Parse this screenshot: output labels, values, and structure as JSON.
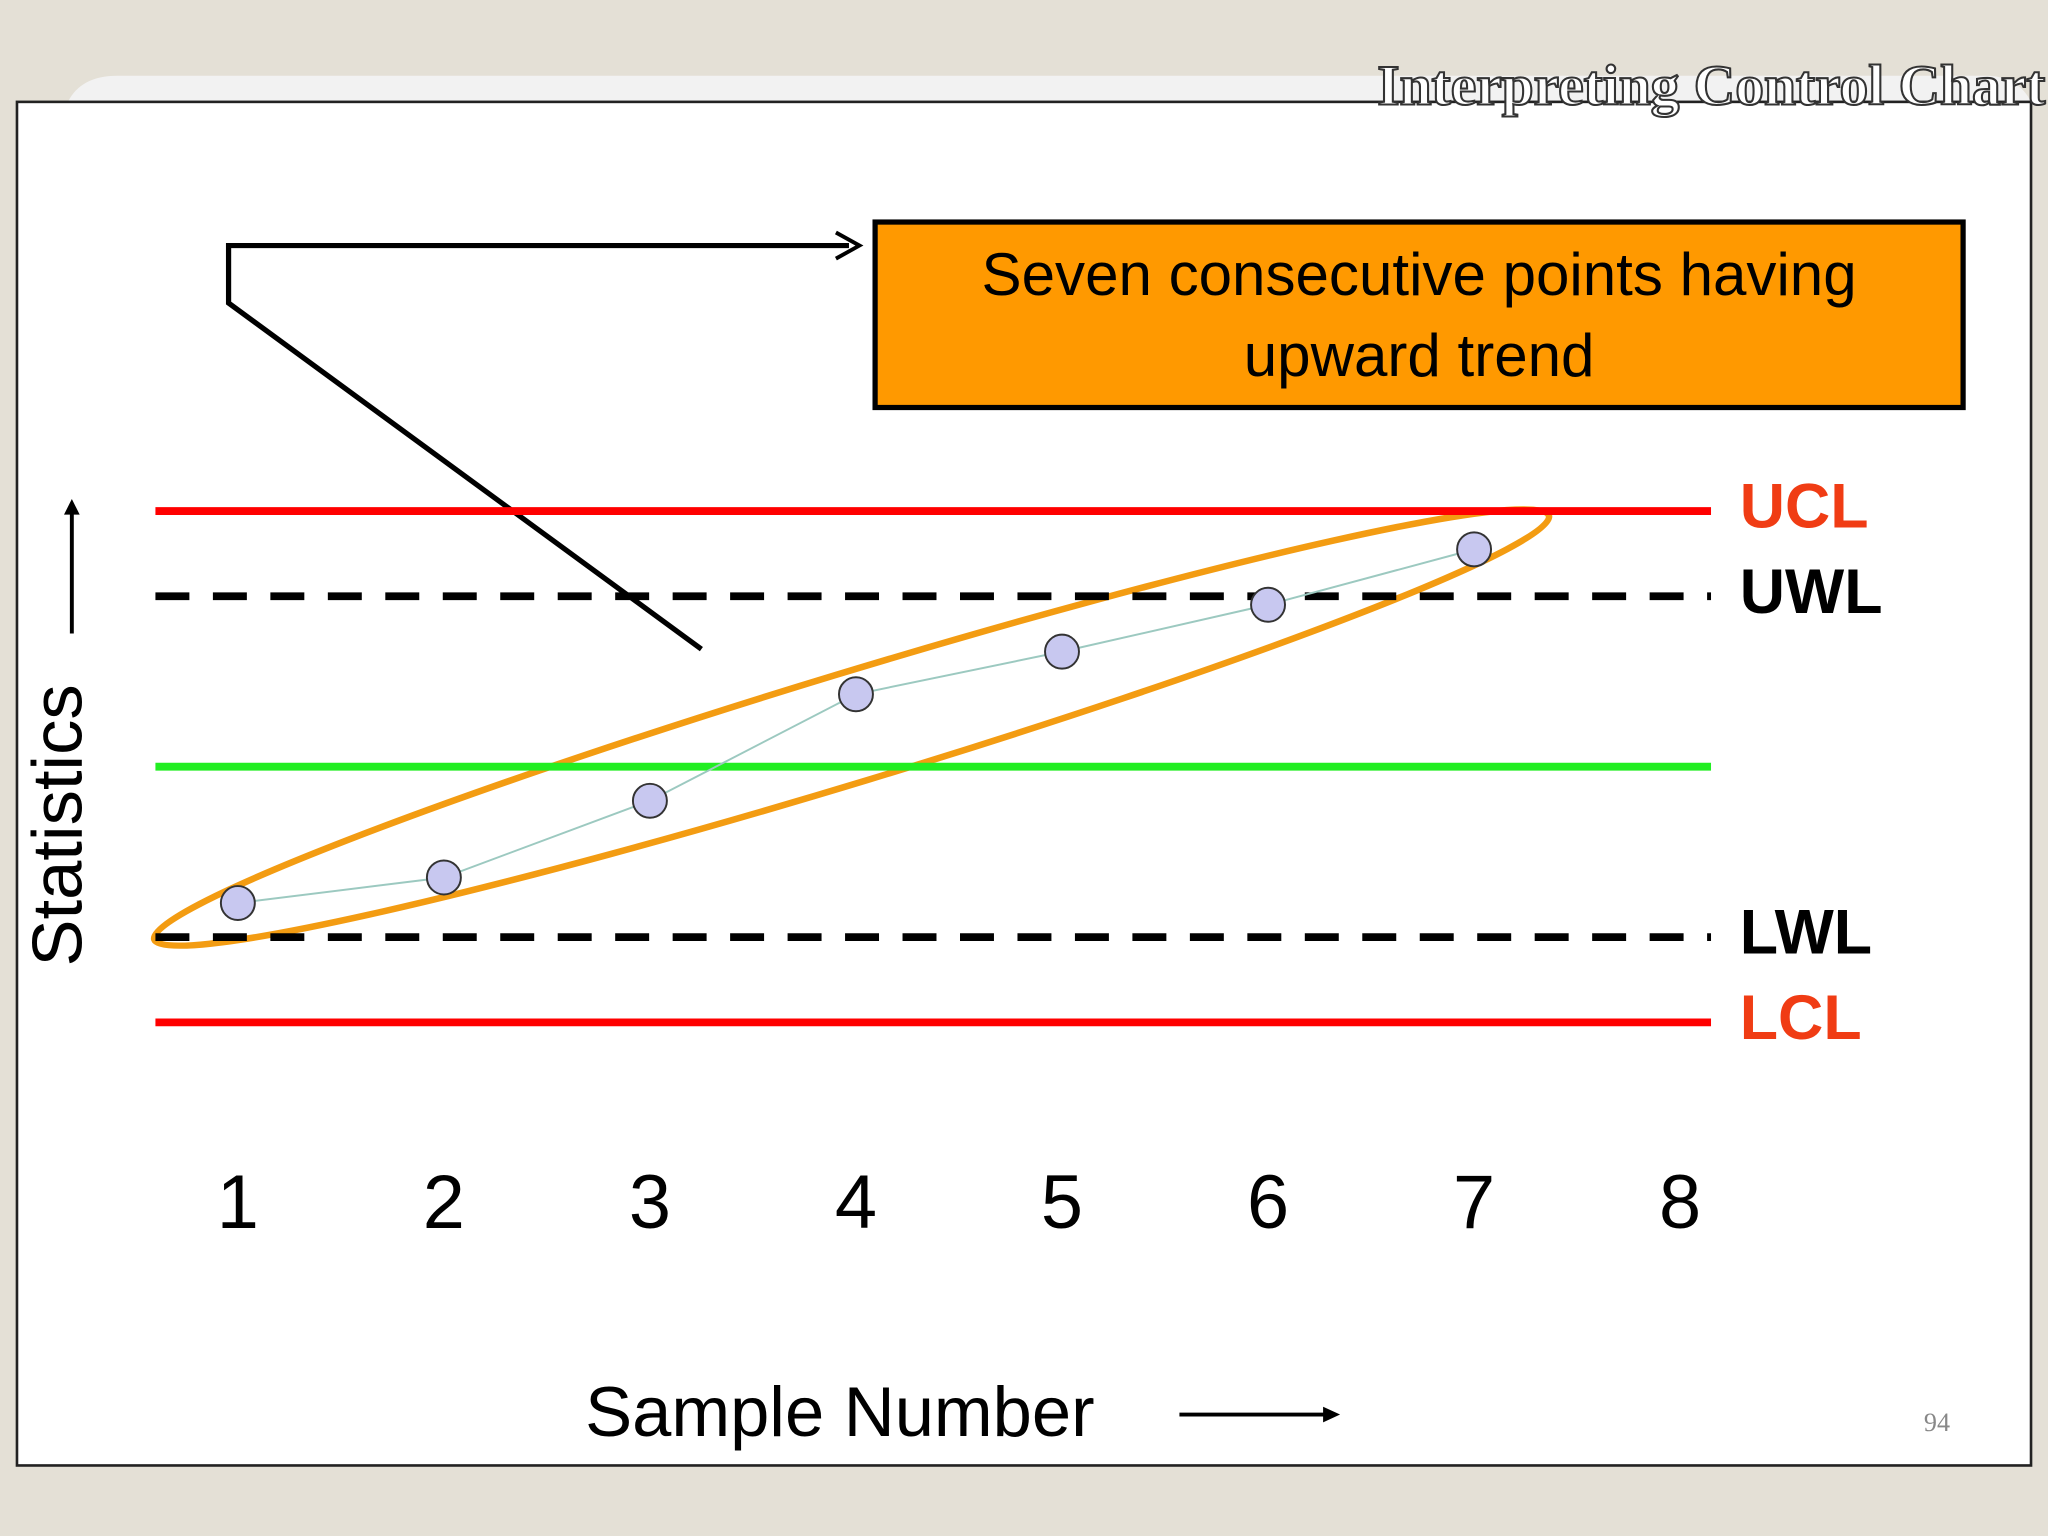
{
  "chart_data": {
    "type": "line",
    "title": "Interpreting Control Chart",
    "page_number": "94",
    "x_label": "Sample Number",
    "y_label": "Statistics",
    "annotation": "Seven consecutive points having upward trend",
    "xlim": [
      0.6,
      8.15
    ],
    "xticks": [
      1,
      2,
      3,
      4,
      5,
      6,
      7,
      8
    ],
    "ylim": [
      -1,
      7
    ],
    "grid": false,
    "x": [
      1,
      2,
      3,
      4,
      5,
      6,
      7
    ],
    "series": [
      {
        "color": "#9cc9c0",
        "marker_color": "#c8c8f0",
        "values": [
          1.4,
          1.7,
          2.6,
          3.85,
          4.35,
          4.9,
          5.55
        ]
      }
    ],
    "reference_lines": [
      {
        "label": "UCL",
        "value": 6,
        "color": "#ff0000",
        "label_color": "#f03c14",
        "style": "solid"
      },
      {
        "label": "UWL",
        "value": 5,
        "color": "#000000",
        "label_color": "#000000",
        "style": "dashed"
      },
      {
        "value": 3,
        "color": "#22ee22",
        "style": "solid"
      },
      {
        "label": "LWL",
        "value": 1,
        "color": "#000000",
        "label_color": "#000000",
        "style": "dashed"
      },
      {
        "label": "LCL",
        "value": 0,
        "color": "#ff0000",
        "label_color": "#f03c14",
        "style": "solid"
      }
    ]
  }
}
